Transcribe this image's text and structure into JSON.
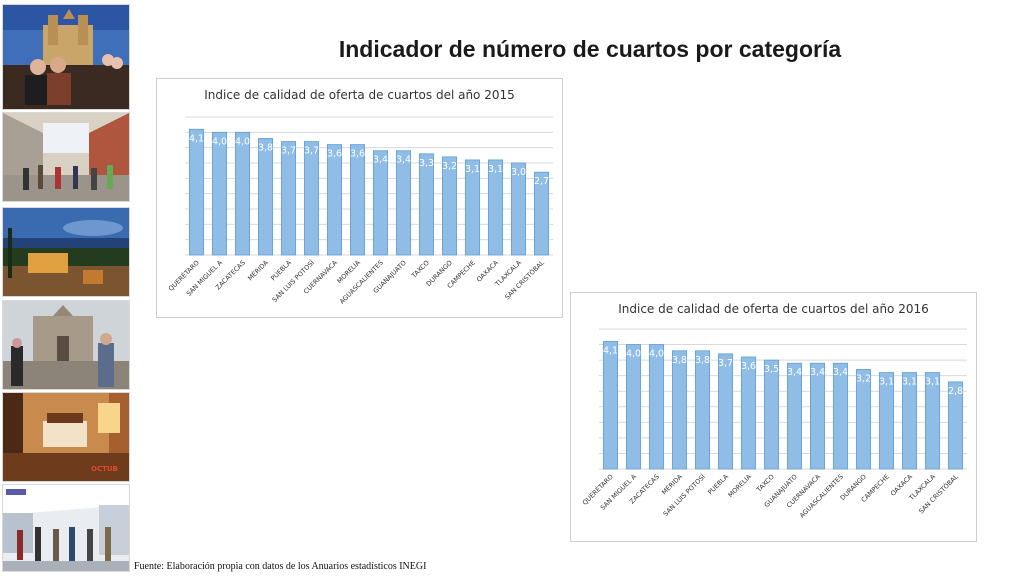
{
  "slide": {
    "title": "Indicador de número de cuartos por categoría",
    "source": "Fuente: Elaboración propia con datos de los Anuarios estadísticos INEGI"
  },
  "photos": [
    {
      "name": "photo-cathedral-terrace"
    },
    {
      "name": "photo-pedestrian-street"
    },
    {
      "name": "photo-hotel-courtyard-night"
    },
    {
      "name": "photo-church-tourists"
    },
    {
      "name": "photo-hotel-room",
      "caption": "OCTUB"
    },
    {
      "name": "photo-shopping-arcade"
    }
  ],
  "colors": {
    "bar": "#8fbde6",
    "bar_edge": "#5f9fd6",
    "grid": "#d9d9d9",
    "label": "#ffffff"
  },
  "chart_data": [
    {
      "type": "bar",
      "title": "Indice de calidad de oferta de cuartos del año 2015",
      "categories": [
        "QUERÉTARO",
        "SAN MIGUEL A",
        "ZACATECAS",
        "MÉRIDA",
        "PUEBLA",
        "SAN LUIS POTOSÍ",
        "CUERNAVACA",
        "MORELIA",
        "AGUASCALIENTES",
        "GUANAJUATO",
        "TAXCO",
        "DURANGO",
        "CAMPECHE",
        "OAXACA",
        "TLAXCALA",
        "SAN CRISTÓBAL"
      ],
      "values": [
        4.1,
        4.0,
        4.0,
        3.8,
        3.7,
        3.7,
        3.6,
        3.6,
        3.4,
        3.4,
        3.3,
        3.2,
        3.1,
        3.1,
        3.0,
        2.7
      ],
      "labels": [
        "4,1",
        "4,0",
        "4,0",
        "3,8",
        "3,7",
        "3,7",
        "3,6",
        "3,6",
        "3,4",
        "3,4",
        "3,3",
        "3,2",
        "3,1",
        "3,1",
        "3,0",
        "2,7"
      ],
      "ylim": [
        0,
        4.5
      ],
      "grid": true
    },
    {
      "type": "bar",
      "title": "Indice de calidad de oferta de cuartos del año 2016",
      "categories": [
        "QUERÉTARO",
        "SAN MIGUEL A",
        "ZACATECAS",
        "MÉRIDA",
        "SAN LUIS POTOSÍ",
        "PUEBLA",
        "MORELIA",
        "TAXCO",
        "GUANAJUATO",
        "CUERNAVACA",
        "AGUASCALIENTES",
        "DURANGO",
        "CAMPECHE",
        "OAXACA",
        "TLAXCALA",
        "SAN CRISTÓBAL"
      ],
      "values": [
        4.1,
        4.0,
        4.0,
        3.8,
        3.8,
        3.7,
        3.6,
        3.5,
        3.4,
        3.4,
        3.4,
        3.2,
        3.1,
        3.1,
        3.1,
        2.8
      ],
      "labels": [
        "4,1",
        "4,0",
        "4,0",
        "3,8",
        "3,8",
        "3,7",
        "3,6",
        "3,5",
        "3,4",
        "3,4",
        "3,4",
        "3,2",
        "3,1",
        "3,1",
        "3,1",
        "2,8"
      ],
      "ylim": [
        0,
        4.5
      ],
      "grid": true
    }
  ]
}
